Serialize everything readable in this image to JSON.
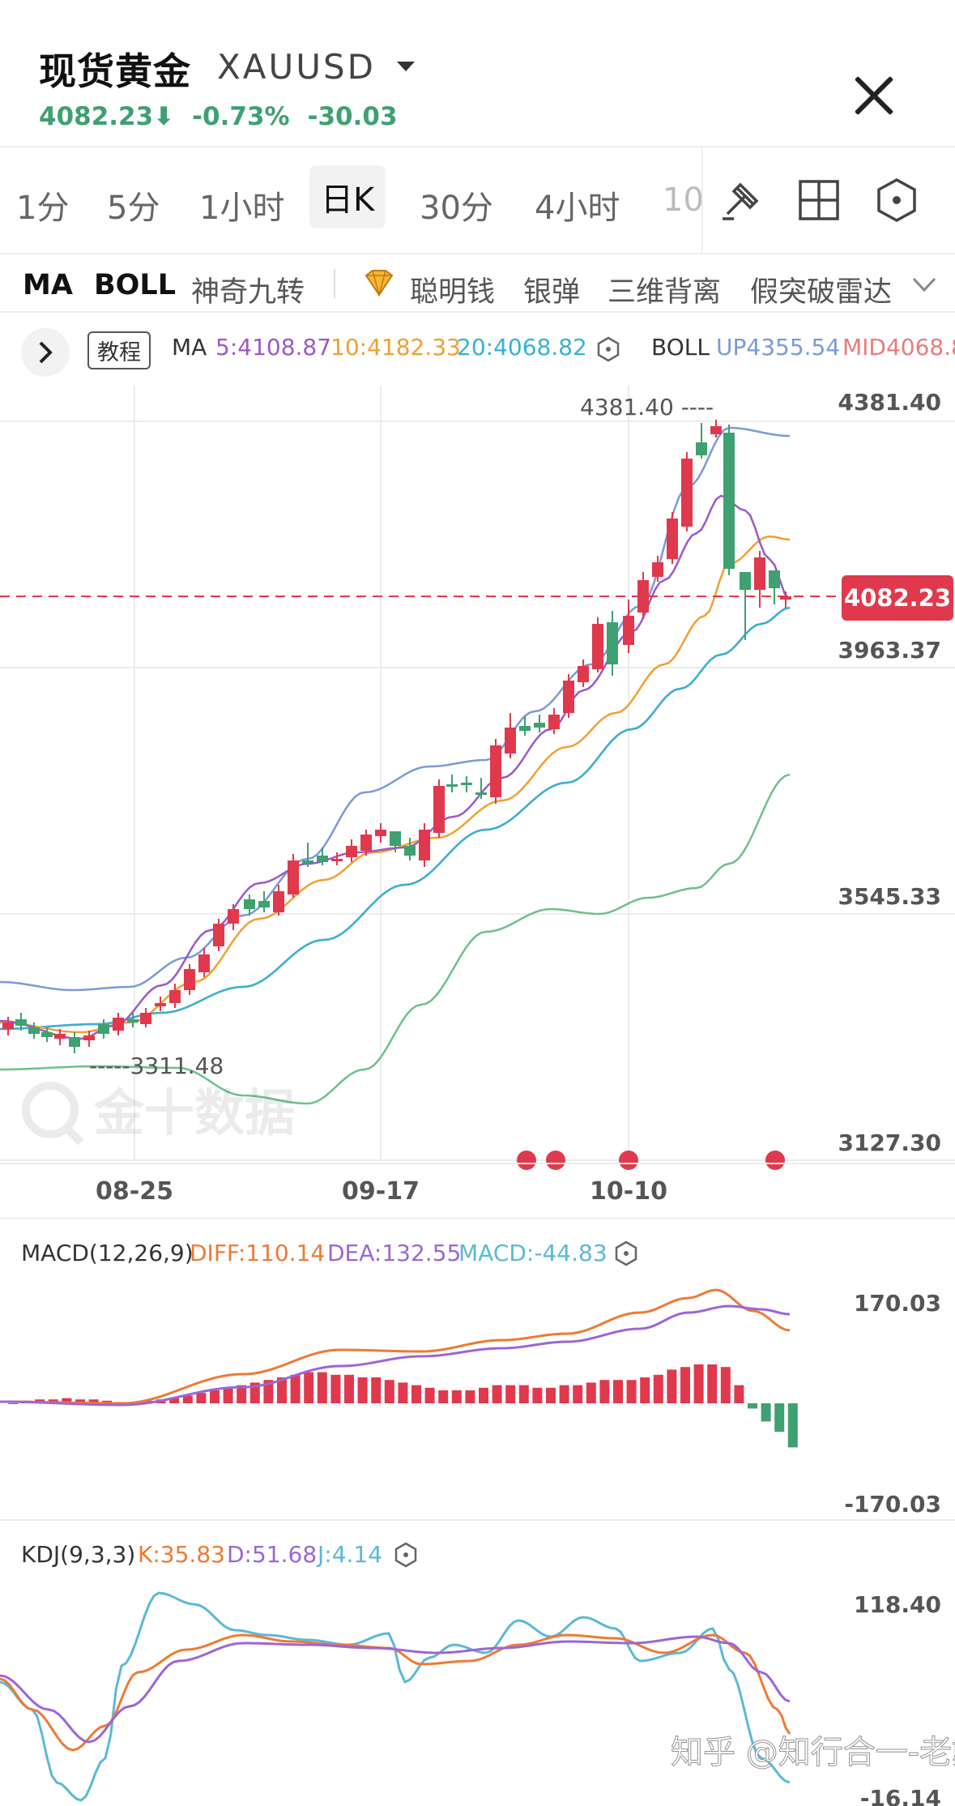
{
  "header": {
    "title": "现货黄金",
    "symbol": "XAUUSD",
    "price": "4082.23⬇",
    "change_pct": "-0.73%",
    "change_abs": "-30.03"
  },
  "periods": [
    "1分",
    "5分",
    "1小时",
    "日K",
    "30分",
    "4小时",
    "10"
  ],
  "active_period": "日K",
  "indicators": {
    "ma": "MA",
    "boll": "BOLL",
    "items": [
      "神奇九转",
      "聪明钱",
      "银弹",
      "三维背离",
      "假突破雷达"
    ]
  },
  "main_legend": {
    "tutorial": "教程",
    "ma_label": "MA",
    "ma5": "5:4108.87",
    "ma10": "10:4182.33",
    "ma20": "20:4068.82",
    "boll_label": "BOLL",
    "boll_up": "UP4355.54",
    "boll_mid": "MID4068.8"
  },
  "main_axis": {
    "ticks": [
      "4381.40",
      "3963.37",
      "3545.33",
      "3127.30"
    ],
    "last_price_tag": "4082.23",
    "high_marker": "4381.40 ----",
    "low_marker": "-----3311.48",
    "dates": [
      "08-25",
      "09-17",
      "10-10"
    ],
    "watermark": "金十数据"
  },
  "macd": {
    "label": "MACD(12,26,9)",
    "diff": "DIFF:110.14",
    "dea": "DEA:132.55",
    "macd": "MACD:-44.83",
    "axis_top": "170.03",
    "axis_bottom": "-170.03"
  },
  "kdj": {
    "label": "KDJ(9,3,3)",
    "k": "K:35.83",
    "d": "D:51.68",
    "j": "J:4.14",
    "axis_top": "118.40",
    "axis_bottom": "-16.14"
  },
  "footer_watermark": "知乎 @知行合一-老戴",
  "colors": {
    "up": "#e0394d",
    "down": "#3fa072",
    "ma5": "#9b59c9",
    "ma10": "#f0a030",
    "ma20": "#35b2d6",
    "boll_up": "#7a9ad8",
    "boll_mid": "#ea7b7b",
    "boll_dn": "#6cc08d",
    "diff": "#ee7a34",
    "dea": "#9b66d6",
    "k": "#ee7a34",
    "d": "#9b66d6",
    "j": "#5bb8d6"
  }
}
